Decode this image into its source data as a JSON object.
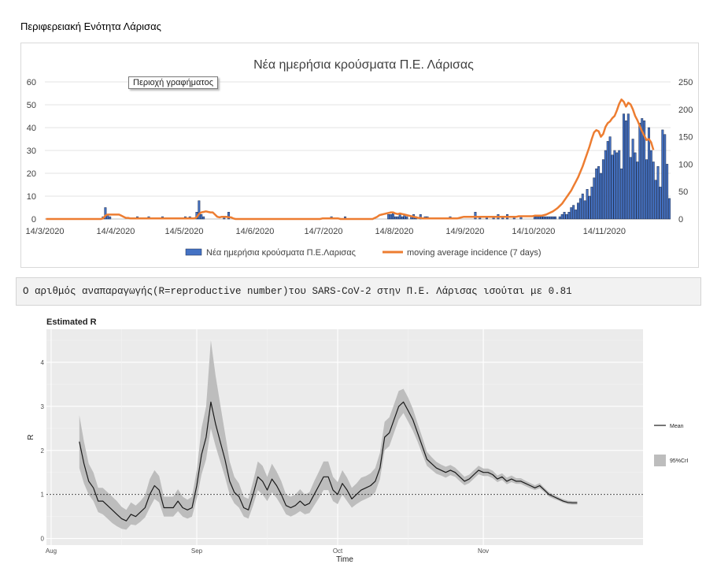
{
  "page": {
    "title": "Περιφερειακή Ενότητα Λάρισας",
    "tooltip": "Περιοχή γραφήματος"
  },
  "banner": {
    "text": "Ο αριθμός αναπαραγωγής(R=reproductive number)του SARS-CoV-2 στην Π.Ε. Λάρισας ισούται με 0.81"
  },
  "colors": {
    "bars": "#4472c4",
    "bar_outline": "#1f2d4d",
    "moving_average": "#ed7d31",
    "mean_line": "#1a1a1a",
    "ci_band": "#bdbdbd",
    "panel_bg": "#ebebeb"
  },
  "chart_data": [
    {
      "type": "bar",
      "title": "Νέα ημερήσια κρούσματα Π.Ε. Λάρισας",
      "start_date": "2020-03-14",
      "x_tick_labels": [
        "14/3/2020",
        "14/4/2020",
        "14/5/2020",
        "14/6/2020",
        "14/7/2020",
        "14/8/2020",
        "14/9/2020",
        "14/10/2020",
        "14/11/2020"
      ],
      "y_left": {
        "lim": [
          0,
          60
        ],
        "ticks": [
          0,
          10,
          20,
          30,
          40,
          50,
          60
        ]
      },
      "y_right": {
        "lim": [
          0,
          250
        ],
        "ticks": [
          0,
          50,
          100,
          150,
          200,
          250
        ]
      },
      "grid": true,
      "legend_position": "bottom",
      "series": [
        {
          "name": "Νέα ημερήσια κρούσματα Π.Ε.Λαρισας",
          "axis": "left",
          "values": [
            0,
            0,
            0,
            0,
            0,
            0,
            0,
            0,
            0,
            0,
            0,
            0,
            0,
            0,
            0,
            0,
            0,
            0,
            0,
            0,
            0,
            0,
            0,
            0,
            0,
            1,
            5,
            2,
            1,
            0,
            0,
            0,
            0,
            0,
            0,
            0,
            0,
            0,
            0,
            0,
            1,
            0,
            0,
            0,
            0,
            1,
            0,
            0,
            0,
            0,
            0,
            1,
            0,
            0,
            0,
            0,
            0,
            0,
            0,
            0,
            0,
            1,
            0,
            1,
            0,
            0,
            3,
            8,
            2,
            1,
            0,
            0,
            0,
            0,
            0,
            0,
            0,
            0,
            1,
            0,
            3,
            0,
            0,
            0,
            0,
            0,
            0,
            0,
            0,
            0,
            0,
            0,
            0,
            0,
            0,
            0,
            0,
            0,
            0,
            0,
            0,
            0,
            0,
            0,
            0,
            0,
            0,
            0,
            0,
            0,
            0,
            0,
            0,
            0,
            0,
            0,
            0,
            0,
            0,
            0,
            0,
            0,
            0,
            0,
            0,
            1,
            0,
            0,
            0,
            0,
            0,
            1,
            0,
            0,
            0,
            0,
            0,
            0,
            0,
            0,
            0,
            0,
            0,
            0,
            0,
            0,
            0,
            0,
            0,
            0,
            2,
            2,
            3,
            1,
            1,
            2,
            1,
            2,
            1,
            0,
            1,
            2,
            1,
            0,
            2,
            0,
            1,
            1,
            0,
            0,
            0,
            0,
            0,
            0,
            0,
            0,
            0,
            1,
            0,
            0,
            0,
            0,
            0,
            0,
            0,
            0,
            0,
            0,
            3,
            0,
            1,
            0,
            0,
            1,
            0,
            0,
            1,
            0,
            2,
            0,
            1,
            0,
            2,
            0,
            0,
            1,
            0,
            0,
            1,
            0,
            0,
            0,
            0,
            0,
            1,
            1,
            1,
            1,
            1,
            1,
            1,
            1,
            1,
            1,
            0,
            1,
            2,
            3,
            2,
            3,
            5,
            6,
            4,
            7,
            9,
            11,
            8,
            13,
            10,
            14,
            18,
            22,
            23,
            20,
            26,
            30,
            34,
            36,
            28,
            30,
            29,
            30,
            22,
            46,
            43,
            46,
            27,
            35,
            29,
            25,
            42,
            44,
            43,
            26,
            40,
            30,
            25,
            17,
            23,
            14,
            39,
            37,
            24,
            9
          ]
        },
        {
          "name": "moving average incidence (7 days)",
          "axis": "right",
          "type": "line",
          "values": [
            0,
            0,
            0,
            0,
            0,
            0,
            0,
            0,
            0,
            0,
            0,
            0,
            0,
            0,
            0,
            0,
            0,
            0,
            0,
            0,
            0,
            0,
            0,
            0,
            0,
            1,
            6,
            8,
            8,
            8,
            8,
            8,
            8,
            6,
            4,
            2,
            2,
            1,
            1,
            1,
            1,
            1,
            1,
            1,
            1,
            1,
            1,
            1,
            1,
            1,
            1,
            1,
            1,
            1,
            1,
            1,
            1,
            1,
            1,
            1,
            1,
            1,
            1,
            1,
            1,
            1,
            3,
            9,
            12,
            13,
            14,
            13,
            12,
            12,
            8,
            4,
            3,
            4,
            4,
            4,
            3,
            3,
            1,
            0,
            0,
            0,
            0,
            0,
            0,
            0,
            0,
            0,
            0,
            0,
            0,
            0,
            0,
            0,
            0,
            0,
            0,
            0,
            0,
            0,
            0,
            0,
            0,
            0,
            0,
            0,
            0,
            0,
            0,
            0,
            0,
            0,
            0,
            0,
            0,
            0,
            0,
            1,
            1,
            1,
            1,
            1,
            1,
            1,
            1,
            0,
            0,
            0,
            0,
            0,
            0,
            0,
            0,
            0,
            0,
            0,
            0,
            0,
            0,
            0,
            2,
            4,
            7,
            8,
            9,
            10,
            11,
            12,
            12,
            10,
            9,
            10,
            9,
            8,
            7,
            6,
            5,
            4,
            3,
            2,
            2,
            1,
            1,
            1,
            1,
            1,
            1,
            1,
            1,
            1,
            1,
            1,
            1,
            1,
            1,
            1,
            1,
            2,
            3,
            4,
            4,
            4,
            4,
            4,
            4,
            4,
            4,
            4,
            4,
            4,
            4,
            4,
            4,
            4,
            4,
            4,
            4,
            4,
            4,
            4,
            4,
            4,
            4,
            5,
            5,
            5,
            5,
            5,
            5,
            5,
            6,
            6,
            6,
            6,
            7,
            8,
            10,
            12,
            14,
            17,
            20,
            24,
            28,
            34,
            40,
            46,
            52,
            60,
            68,
            76,
            86,
            96,
            108,
            120,
            132,
            146,
            158,
            162,
            160,
            150,
            155,
            168,
            175,
            178,
            184,
            188,
            198,
            210,
            218,
            214,
            205,
            212,
            209,
            200,
            188,
            180,
            170,
            160,
            152,
            144,
            146,
            140,
            126
          ]
        }
      ]
    },
    {
      "type": "line",
      "title": "Estimated R",
      "xlabel": "Time",
      "ylabel": "R",
      "start_date": "2020-08-07",
      "x_tick_labels": [
        "Aug",
        "Sep",
        "Oct",
        "Nov"
      ],
      "x_tick_dates": [
        "2020-08-01",
        "2020-09-01",
        "2020-10-01",
        "2020-11-01"
      ],
      "xlim": [
        "2020-07-31",
        "2020-12-05"
      ],
      "ylim": [
        -0.15,
        4.75
      ],
      "y_ticks": [
        0,
        1,
        2,
        3,
        4
      ],
      "reference_line": 1,
      "grid": true,
      "legend_position": "right",
      "legend": [
        "Mean",
        "95%CrI"
      ],
      "series": [
        {
          "name": "Mean",
          "values": [
            2.2,
            1.7,
            1.3,
            1.15,
            0.85,
            0.85,
            0.75,
            0.65,
            0.55,
            0.45,
            0.4,
            0.55,
            0.5,
            0.6,
            0.7,
            1.0,
            1.2,
            1.1,
            0.7,
            0.7,
            0.7,
            0.85,
            0.7,
            0.65,
            0.7,
            1.2,
            1.9,
            2.3,
            3.1,
            2.6,
            2.2,
            1.8,
            1.3,
            1.05,
            0.95,
            0.7,
            0.65,
            1.0,
            1.4,
            1.3,
            1.1,
            1.35,
            1.2,
            1.0,
            0.75,
            0.7,
            0.75,
            0.85,
            0.75,
            0.8,
            1.0,
            1.2,
            1.4,
            1.4,
            1.1,
            1.0,
            1.25,
            1.1,
            0.9,
            1.0,
            1.1,
            1.15,
            1.2,
            1.3,
            1.6,
            2.3,
            2.4,
            2.7,
            3.0,
            3.1,
            2.9,
            2.7,
            2.4,
            2.1,
            1.8,
            1.7,
            1.6,
            1.55,
            1.5,
            1.55,
            1.5,
            1.4,
            1.3,
            1.35,
            1.45,
            1.55,
            1.5,
            1.5,
            1.45,
            1.35,
            1.4,
            1.3,
            1.35,
            1.3,
            1.3,
            1.25,
            1.2,
            1.15,
            1.2,
            1.1,
            1.0,
            0.95,
            0.9,
            0.85,
            0.82,
            0.81,
            0.81
          ]
        },
        {
          "name": "95%CrI",
          "lower": [
            1.6,
            1.25,
            1.0,
            0.85,
            0.6,
            0.55,
            0.45,
            0.35,
            0.28,
            0.22,
            0.2,
            0.32,
            0.3,
            0.38,
            0.48,
            0.7,
            0.9,
            0.82,
            0.5,
            0.5,
            0.5,
            0.62,
            0.5,
            0.45,
            0.5,
            0.9,
            1.45,
            1.8,
            2.5,
            2.1,
            1.75,
            1.4,
            1.0,
            0.8,
            0.7,
            0.5,
            0.45,
            0.75,
            1.1,
            1.0,
            0.85,
            1.05,
            0.92,
            0.75,
            0.55,
            0.5,
            0.55,
            0.62,
            0.55,
            0.58,
            0.75,
            0.92,
            1.1,
            1.1,
            0.85,
            0.78,
            1.0,
            0.85,
            0.7,
            0.78,
            0.85,
            0.9,
            0.95,
            1.05,
            1.35,
            2.0,
            2.1,
            2.4,
            2.7,
            2.85,
            2.65,
            2.45,
            2.2,
            1.92,
            1.65,
            1.56,
            1.47,
            1.43,
            1.38,
            1.44,
            1.4,
            1.3,
            1.21,
            1.26,
            1.36,
            1.46,
            1.42,
            1.42,
            1.37,
            1.28,
            1.33,
            1.23,
            1.28,
            1.24,
            1.24,
            1.19,
            1.14,
            1.1,
            1.14,
            1.05,
            0.95,
            0.9,
            0.86,
            0.81,
            0.78,
            0.77,
            0.77
          ],
          "upper": [
            2.8,
            2.2,
            1.7,
            1.5,
            1.15,
            1.15,
            1.05,
            0.95,
            0.85,
            0.72,
            0.65,
            0.82,
            0.75,
            0.85,
            0.98,
            1.35,
            1.55,
            1.42,
            0.95,
            0.95,
            0.95,
            1.12,
            0.95,
            0.88,
            0.95,
            1.55,
            2.5,
            3.0,
            4.5,
            3.7,
            3.05,
            2.4,
            1.75,
            1.4,
            1.25,
            0.95,
            0.9,
            1.3,
            1.75,
            1.65,
            1.4,
            1.7,
            1.52,
            1.3,
            1.0,
            0.95,
            1.0,
            1.12,
            1.0,
            1.05,
            1.3,
            1.52,
            1.75,
            1.75,
            1.4,
            1.28,
            1.55,
            1.38,
            1.15,
            1.25,
            1.38,
            1.42,
            1.48,
            1.6,
            1.95,
            2.65,
            2.75,
            3.05,
            3.35,
            3.4,
            3.2,
            2.95,
            2.62,
            2.3,
            1.97,
            1.85,
            1.74,
            1.68,
            1.63,
            1.67,
            1.61,
            1.51,
            1.4,
            1.45,
            1.55,
            1.65,
            1.59,
            1.59,
            1.54,
            1.43,
            1.48,
            1.38,
            1.43,
            1.37,
            1.37,
            1.31,
            1.26,
            1.21,
            1.26,
            1.15,
            1.05,
            1.0,
            0.94,
            0.89,
            0.86,
            0.85,
            0.85
          ]
        }
      ]
    }
  ]
}
